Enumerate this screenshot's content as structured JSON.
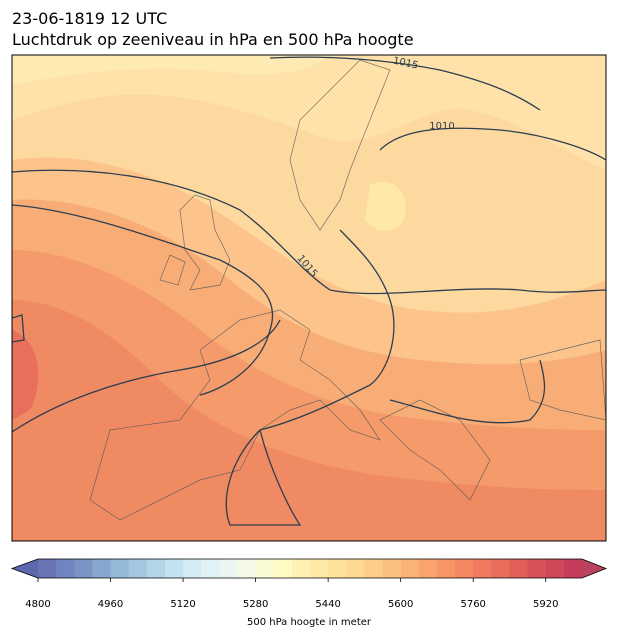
{
  "title_line1": "23-06-1819 12 UTC",
  "title_line2": "Luchtdruk op zeeniveau in hPa en 500 hPa hoogte",
  "isobar_labels": [
    1015,
    1010,
    1015
  ],
  "colorbar": {
    "label": "500 hPa hoogte in meter",
    "lim": [
      4800,
      6000
    ],
    "ticks": [
      4800,
      4960,
      5120,
      5280,
      5440,
      5600,
      5760,
      5920
    ],
    "colors": [
      "#6a74b5",
      "#7084bd",
      "#7a95c5",
      "#86a8cf",
      "#93bad8",
      "#a3c8e0",
      "#b3d5e8",
      "#c3e1ef",
      "#d3ebf4",
      "#e1f2f7",
      "#ebf6f2",
      "#f3f9e4",
      "#fafbd2",
      "#fff9c4",
      "#fff1b2",
      "#feeaa6",
      "#fee19b",
      "#fed890",
      "#fdcd88",
      "#fcc07e",
      "#fbb375",
      "#f9a46d",
      "#f69566",
      "#f38762",
      "#ef7a5e",
      "#e86d5b",
      "#e06058",
      "#d85357",
      "#cf4758",
      "#c43d5b"
    ],
    "extend_colors": [
      "#5e66ad",
      "#b8425f"
    ]
  }
}
